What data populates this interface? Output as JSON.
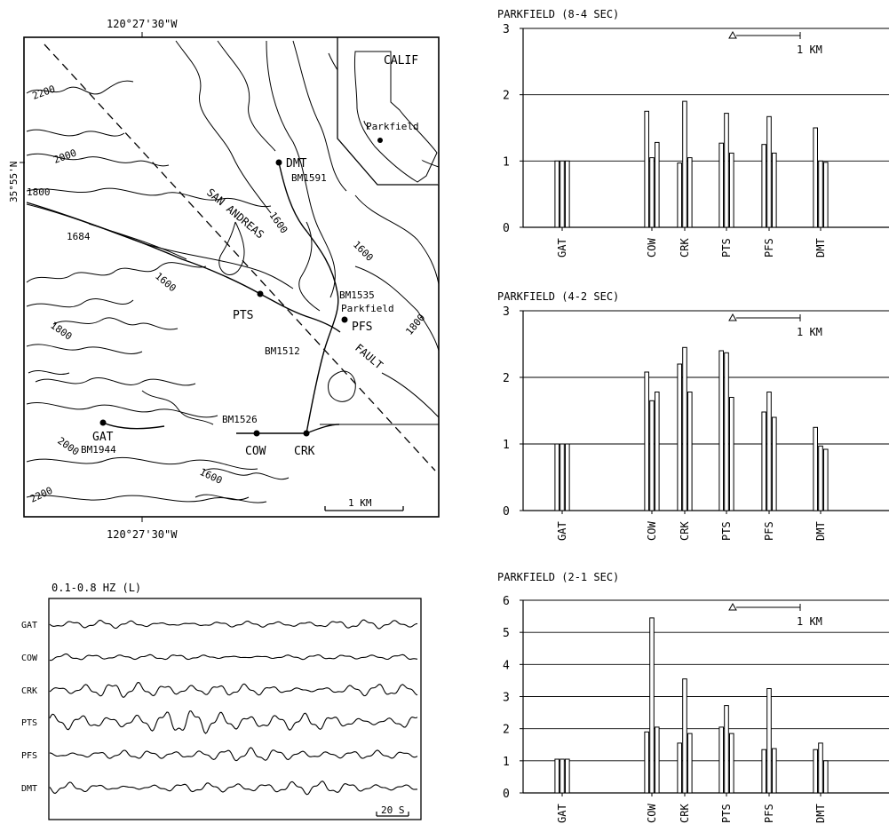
{
  "map": {
    "top_lon": "120°27'30\"W",
    "bottom_lon": "120°27'30\"W",
    "lat": "35°55'N",
    "inset_calif": "CALIF",
    "inset_parkfield": "Parkfield",
    "fault_name_1": "SAN ANDREAS",
    "fault_name_2": "FAULT",
    "scale": "1 KM",
    "stations": [
      {
        "code": "DMT",
        "bm": "BM1591"
      },
      {
        "code": "PTS",
        "bm": ""
      },
      {
        "code": "PFS",
        "bm": "BM1535"
      },
      {
        "code": "GAT",
        "bm": "BM1944"
      },
      {
        "code": "COW",
        "bm": "BM1526"
      },
      {
        "code": "CRK",
        "bm": ""
      }
    ],
    "town": "Parkfield",
    "bm_1512": "BM1512",
    "contours": [
      "2200",
      "2000",
      "1800",
      "1684",
      "1600",
      "1600",
      "1600",
      "1800",
      "1600",
      "1800",
      "2000",
      "2200"
    ]
  },
  "seismogram": {
    "title": "0.1-0.8 HZ (L)",
    "scale": "20 S",
    "stations": [
      "GAT",
      "COW",
      "CRK",
      "PTS",
      "PFS",
      "DMT"
    ]
  },
  "chart_data": [
    {
      "type": "bar",
      "title": "PARKFIELD (8-4 SEC)",
      "ylim": [
        0,
        3
      ],
      "yticks": [
        "0",
        "1",
        "2",
        "3"
      ],
      "grid": true,
      "scale_label": "1 KM",
      "categories": [
        "GAT",
        "COW",
        "CRK",
        "PTS",
        "PFS",
        "DMT"
      ],
      "series": [
        {
          "values": [
            1.0,
            1.75,
            0.97,
            1.27,
            1.25,
            1.5
          ]
        },
        {
          "values": [
            1.0,
            1.05,
            1.9,
            1.72,
            1.67,
            1.0
          ]
        },
        {
          "values": [
            1.0,
            1.28,
            1.05,
            1.12,
            1.12,
            0.98
          ]
        }
      ]
    },
    {
      "type": "bar",
      "title": "PARKFIELD (4-2 SEC)",
      "ylim": [
        0,
        3
      ],
      "yticks": [
        "0",
        "1",
        "2",
        "3"
      ],
      "grid": true,
      "scale_label": "1 KM",
      "categories": [
        "GAT",
        "COW",
        "CRK",
        "PTS",
        "PFS",
        "DMT"
      ],
      "series": [
        {
          "values": [
            1.0,
            2.08,
            2.2,
            2.4,
            1.48,
            1.25
          ]
        },
        {
          "values": [
            1.0,
            1.65,
            2.45,
            2.37,
            1.78,
            0.97
          ]
        },
        {
          "values": [
            1.0,
            1.78,
            1.78,
            1.7,
            1.4,
            0.92
          ]
        }
      ]
    },
    {
      "type": "bar",
      "title": "PARKFIELD (2-1 SEC)",
      "ylim": [
        0,
        6
      ],
      "yticks": [
        "0",
        "1",
        "2",
        "3",
        "4",
        "5",
        "6"
      ],
      "grid": true,
      "scale_label": "1 KM",
      "categories": [
        "GAT",
        "COW",
        "CRK",
        "PTS",
        "PFS",
        "DMT"
      ],
      "series": [
        {
          "values": [
            1.05,
            1.9,
            1.55,
            2.05,
            1.35,
            1.35
          ]
        },
        {
          "values": [
            1.05,
            5.45,
            3.55,
            2.72,
            3.25,
            1.55
          ]
        },
        {
          "values": [
            1.05,
            2.05,
            1.85,
            1.85,
            1.38,
            1.0
          ]
        }
      ]
    }
  ]
}
